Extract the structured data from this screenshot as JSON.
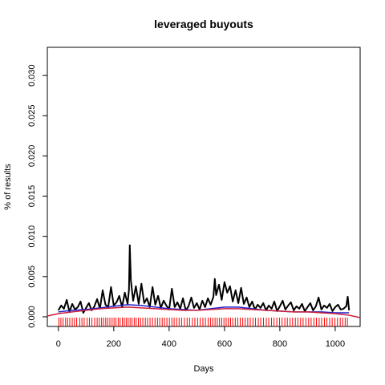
{
  "chart_data": {
    "type": "line",
    "title": "leveraged buyouts",
    "xlabel": "Days",
    "ylabel": "% of results",
    "xlim": [
      -40,
      1090
    ],
    "ylim": [
      -0.0012,
      0.0335
    ],
    "x_ticks": [
      0,
      200,
      400,
      600,
      800,
      1000
    ],
    "y_ticks": [
      0.0,
      0.005,
      0.01,
      0.015,
      0.02,
      0.025,
      0.03
    ],
    "y_tick_labels": [
      "0.000",
      "0.005",
      "0.010",
      "0.015",
      "0.020",
      "0.025",
      "0.030"
    ],
    "grid": false,
    "legend": "none",
    "colors": {
      "raw": "#000000",
      "smooth_blue": "#1f1fcc",
      "smooth_red": "#cc1f3a",
      "rug": "#ff0000",
      "axis": "#000000"
    },
    "series": [
      {
        "style": "spiky-black",
        "x": [
          0,
          10,
          20,
          30,
          40,
          50,
          60,
          70,
          80,
          90,
          100,
          110,
          120,
          130,
          140,
          150,
          160,
          170,
          180,
          190,
          200,
          210,
          220,
          230,
          240,
          250,
          255,
          258,
          262,
          270,
          280,
          290,
          300,
          310,
          320,
          330,
          340,
          350,
          360,
          370,
          380,
          390,
          400,
          410,
          420,
          430,
          440,
          450,
          460,
          470,
          480,
          490,
          500,
          510,
          520,
          530,
          540,
          550,
          560,
          565,
          570,
          580,
          590,
          600,
          610,
          620,
          630,
          640,
          650,
          660,
          670,
          680,
          690,
          700,
          710,
          720,
          730,
          740,
          750,
          760,
          770,
          780,
          790,
          800,
          810,
          820,
          830,
          840,
          850,
          860,
          870,
          880,
          890,
          900,
          910,
          920,
          930,
          940,
          950,
          960,
          970,
          980,
          990,
          1000,
          1010,
          1020,
          1030,
          1040,
          1045,
          1050
        ],
        "y": [
          0.0008,
          0.0014,
          0.001,
          0.0021,
          0.0006,
          0.0016,
          0.0009,
          0.0012,
          0.0019,
          0.0005,
          0.0011,
          0.0017,
          0.0008,
          0.0013,
          0.0022,
          0.001,
          0.0033,
          0.0015,
          0.0012,
          0.0037,
          0.0014,
          0.0018,
          0.0026,
          0.0012,
          0.003,
          0.0016,
          0.0034,
          0.0089,
          0.0045,
          0.002,
          0.0038,
          0.0016,
          0.0041,
          0.0017,
          0.0023,
          0.0012,
          0.0037,
          0.0015,
          0.0026,
          0.0011,
          0.002,
          0.0014,
          0.0009,
          0.0035,
          0.0012,
          0.0018,
          0.001,
          0.0023,
          0.0008,
          0.0013,
          0.0024,
          0.0011,
          0.0017,
          0.0009,
          0.002,
          0.0012,
          0.0023,
          0.0015,
          0.0025,
          0.0047,
          0.0027,
          0.004,
          0.0021,
          0.0043,
          0.003,
          0.0038,
          0.0019,
          0.0033,
          0.0017,
          0.0036,
          0.0016,
          0.0024,
          0.0012,
          0.0019,
          0.0009,
          0.0015,
          0.0011,
          0.0017,
          0.0008,
          0.0014,
          0.001,
          0.0019,
          0.0007,
          0.0013,
          0.002,
          0.0009,
          0.0014,
          0.0018,
          0.0008,
          0.0013,
          0.001,
          0.0016,
          0.0007,
          0.0012,
          0.0017,
          0.0008,
          0.0013,
          0.0024,
          0.0009,
          0.0014,
          0.0011,
          0.0016,
          0.0007,
          0.0012,
          0.0015,
          0.0009,
          0.001,
          0.0013,
          0.0025,
          0.0008
        ]
      },
      {
        "style": "smooth-blue",
        "x": [
          0,
          50,
          100,
          150,
          200,
          250,
          300,
          350,
          400,
          450,
          500,
          550,
          600,
          650,
          700,
          750,
          800,
          850,
          900,
          950,
          1000,
          1050
        ],
        "y": [
          0.0006,
          0.0008,
          0.0009,
          0.0011,
          0.0013,
          0.0015,
          0.0014,
          0.0012,
          0.001,
          0.0009,
          0.0008,
          0.001,
          0.0012,
          0.0012,
          0.001,
          0.0008,
          0.0007,
          0.0006,
          0.0006,
          0.0006,
          0.0005,
          0.0005
        ]
      },
      {
        "style": "smooth-red",
        "x": [
          -40,
          0,
          50,
          100,
          150,
          200,
          250,
          300,
          350,
          400,
          450,
          500,
          550,
          600,
          650,
          700,
          750,
          800,
          850,
          900,
          950,
          1000,
          1050,
          1090
        ],
        "y": [
          0.0001,
          0.0004,
          0.0006,
          0.0008,
          0.001,
          0.0011,
          0.0012,
          0.0011,
          0.001,
          0.0009,
          0.0008,
          0.0008,
          0.0009,
          0.001,
          0.001,
          0.0009,
          0.0008,
          0.0007,
          0.0006,
          0.0006,
          0.0005,
          0.0004,
          0.0002,
          -0.0001
        ]
      }
    ],
    "rug_x": [
      2,
      9,
      17,
      26,
      33,
      41,
      50,
      58,
      66,
      77,
      85,
      93,
      104,
      112,
      121,
      131,
      140,
      148,
      156,
      163,
      171,
      178,
      186,
      194,
      201,
      208,
      216,
      223,
      231,
      238,
      245,
      252,
      259,
      266,
      274,
      281,
      289,
      297,
      305,
      314,
      322,
      331,
      340,
      349,
      358,
      366,
      375,
      383,
      392,
      401,
      410,
      418,
      427,
      436,
      445,
      455,
      465,
      474,
      484,
      493,
      503,
      512,
      522,
      531,
      541,
      550,
      558,
      566,
      574,
      582,
      590,
      598,
      606,
      614,
      622,
      630,
      639,
      648,
      657,
      666,
      675,
      684,
      693,
      703,
      712,
      722,
      731,
      741,
      751,
      760,
      770,
      779,
      789,
      799,
      808,
      818,
      827,
      837,
      846,
      856,
      865,
      875,
      884,
      894,
      904,
      913,
      923,
      932,
      942,
      951,
      961,
      970,
      980,
      989,
      999,
      1008,
      1018,
      1027,
      1036,
      1044
    ]
  }
}
